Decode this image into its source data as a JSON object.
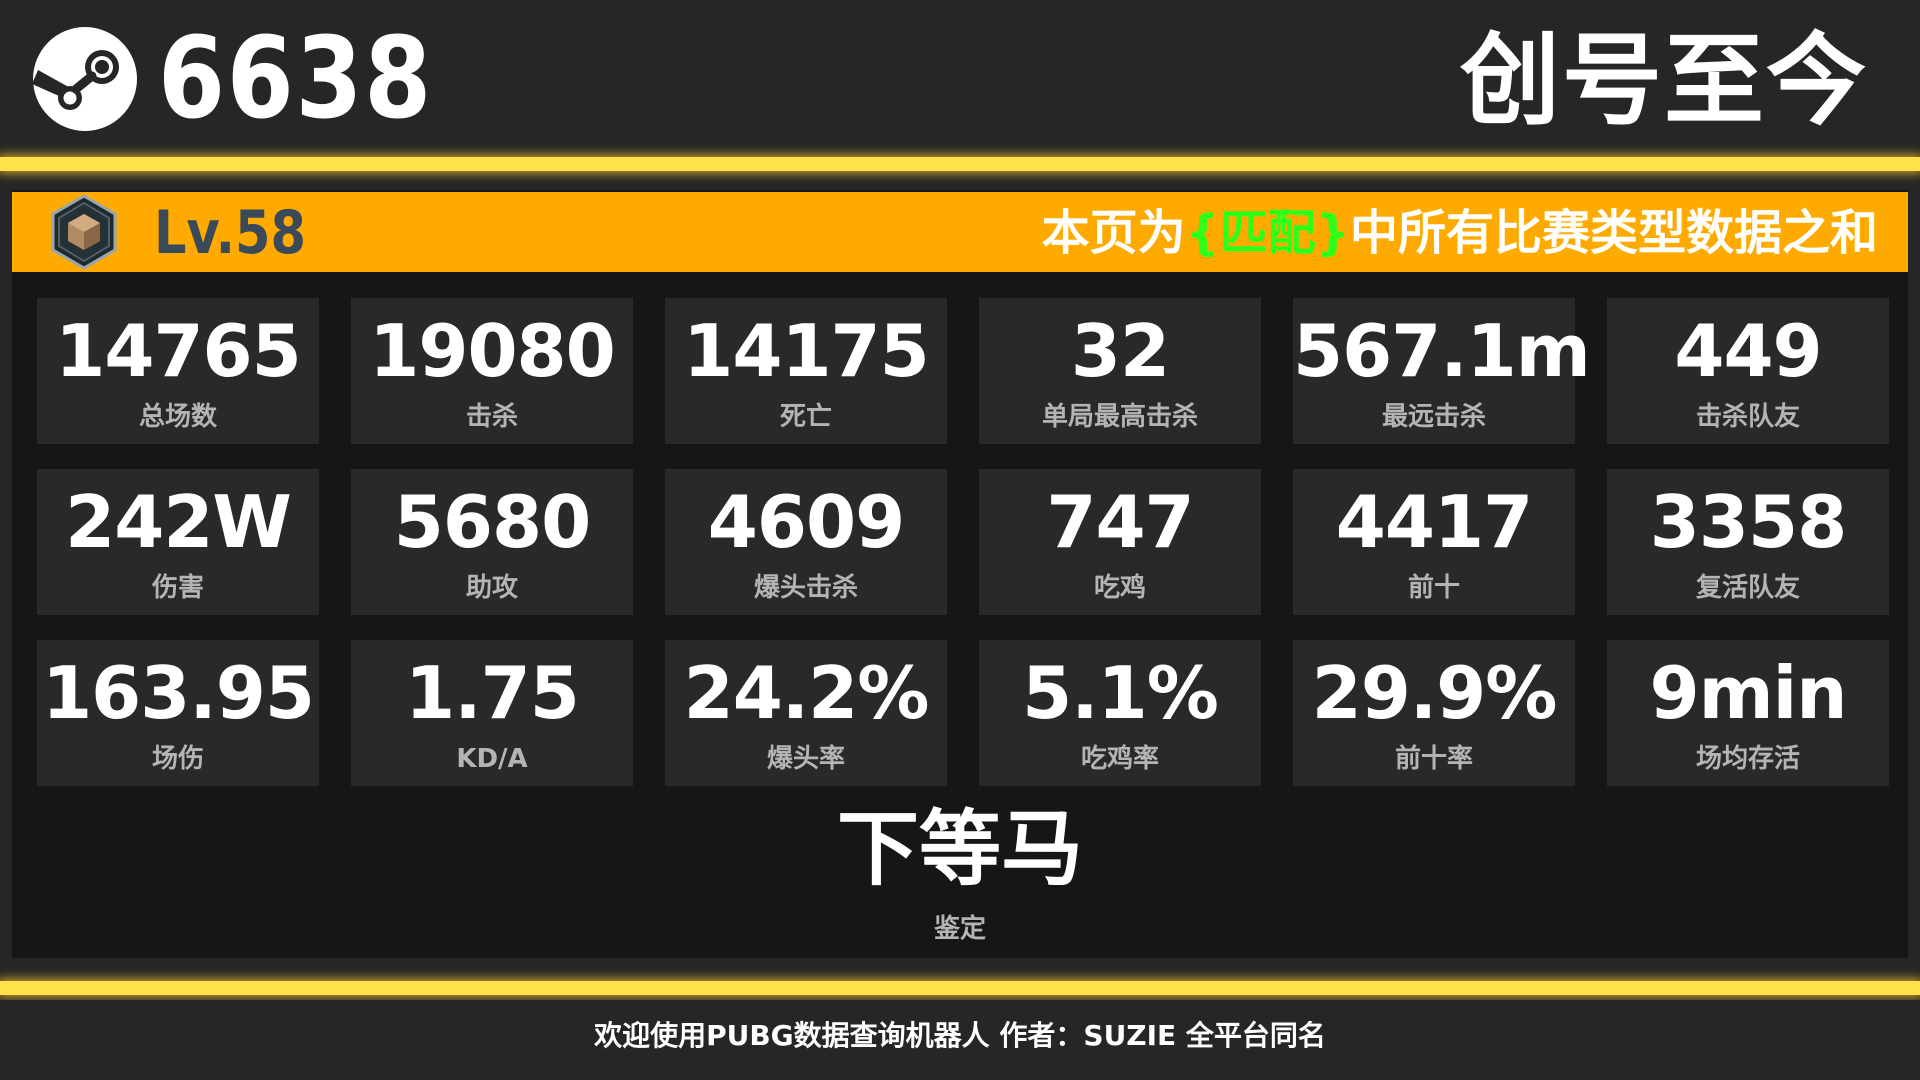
{
  "header": {
    "player_id": "6638",
    "period_title": "创号至今",
    "steam_icon": "steam-icon"
  },
  "banner": {
    "rank_icon": "rank-badge-icon",
    "level": "Lv.58",
    "note_prefix": "本页为",
    "note_highlight": "{匹配}",
    "note_suffix": "中所有比赛类型数据之和"
  },
  "stats": [
    {
      "value": "14765",
      "label": "总场数"
    },
    {
      "value": "19080",
      "label": "击杀"
    },
    {
      "value": "14175",
      "label": "死亡"
    },
    {
      "value": "32",
      "label": "单局最高击杀"
    },
    {
      "value": "567.1m",
      "label": "最远击杀"
    },
    {
      "value": "449",
      "label": "击杀队友"
    },
    {
      "value": "242W",
      "label": "伤害"
    },
    {
      "value": "5680",
      "label": "助攻"
    },
    {
      "value": "4609",
      "label": "爆头击杀"
    },
    {
      "value": "747",
      "label": "吃鸡"
    },
    {
      "value": "4417",
      "label": "前十"
    },
    {
      "value": "3358",
      "label": "复活队友"
    },
    {
      "value": "163.95",
      "label": "场伤"
    },
    {
      "value": "1.75",
      "label": "KD/A"
    },
    {
      "value": "24.2%",
      "label": "爆头率"
    },
    {
      "value": "5.1%",
      "label": "吃鸡率"
    },
    {
      "value": "29.9%",
      "label": "前十率"
    },
    {
      "value": "9min",
      "label": "场均存活"
    }
  ],
  "verdict": {
    "value": "下等马",
    "label": "鉴定"
  },
  "footer": {
    "text": "欢迎使用PUBG数据查询机器人 作者：SUZIE 全平台同名"
  },
  "colors": {
    "background": "#262626",
    "panel": "#161616",
    "card": "#292929",
    "banner": "#ffaa00",
    "glow_line": "#ffe24a",
    "highlight": "#2bff1a",
    "level_text": "#3a4a58"
  }
}
